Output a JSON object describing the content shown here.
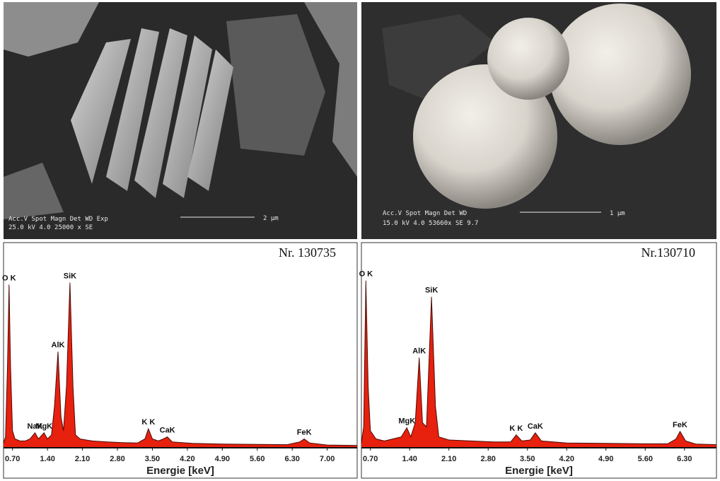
{
  "images": [
    {
      "header": "Acc.V  Spot Magn   Det  WD  Exp",
      "settings": "25.0 kV 4.0  25000 x  SE",
      "scale": "2 µm"
    },
    {
      "header": "Acc.V  Spot Magn   Det  WD",
      "settings": "15.0 kV 4.0  53660x  SE   9.7",
      "scale": "1 µm"
    }
  ],
  "chart_data": [
    {
      "type": "area",
      "title": "Nr. 130735",
      "x_label": "Energie [keV]",
      "color": "#e8200e",
      "x": [
        0.52,
        0.56,
        0.6,
        0.63,
        0.66,
        0.7,
        0.75,
        0.85,
        0.95,
        1.05,
        1.15,
        1.22,
        1.33,
        1.4,
        1.48,
        1.54,
        1.61,
        1.67,
        1.72,
        1.78,
        1.85,
        1.91,
        1.96,
        2.05,
        2.3,
        2.6,
        2.9,
        3.2,
        3.35,
        3.42,
        3.5,
        3.62,
        3.72,
        3.8,
        3.9,
        4.3,
        4.9,
        5.6,
        6.2,
        6.45,
        6.54,
        6.65,
        7.0,
        7.6
      ],
      "values": [
        2,
        5,
        40,
        80,
        40,
        8,
        4,
        3,
        3,
        4,
        7,
        4,
        7,
        4,
        6,
        20,
        47,
        15,
        8,
        30,
        81,
        30,
        6,
        4,
        3,
        2.5,
        2.2,
        2,
        4,
        9,
        4,
        3,
        4,
        5,
        2.5,
        1.8,
        1.5,
        1.3,
        1.2,
        2.5,
        4,
        2,
        1,
        0.8
      ],
      "xlim": [
        0.52,
        7.6
      ],
      "ylim": [
        0,
        100
      ],
      "xticks": [
        {
          "value": 0.7,
          "label": "0.70"
        },
        {
          "value": 1.4,
          "label": "1.40"
        },
        {
          "value": 2.1,
          "label": "2.10"
        },
        {
          "value": 2.8,
          "label": "2.80"
        },
        {
          "value": 3.5,
          "label": "3.50"
        },
        {
          "value": 4.2,
          "label": "4.20"
        },
        {
          "value": 4.9,
          "label": "4.90"
        },
        {
          "value": 5.6,
          "label": "5.60"
        },
        {
          "value": 6.3,
          "label": "6.30"
        },
        {
          "value": 7.0,
          "label": "7.00"
        }
      ],
      "annotations": [
        {
          "text": "O K",
          "x": 0.63
        },
        {
          "text": "NaK",
          "x": 1.15
        },
        {
          "text": "MgK",
          "x": 1.33
        },
        {
          "text": "AlK",
          "x": 1.61
        },
        {
          "text": "SiK",
          "x": 1.85
        },
        {
          "text": "K K",
          "x": 3.42
        },
        {
          "text": "CaK",
          "x": 3.8
        },
        {
          "text": "FeK",
          "x": 6.54
        }
      ]
    },
    {
      "type": "area",
      "title": "Nr.130710",
      "x_label": "Energie [keV]",
      "color": "#e8200e",
      "x": [
        0.54,
        0.58,
        0.62,
        0.66,
        0.7,
        0.8,
        0.95,
        1.1,
        1.25,
        1.35,
        1.42,
        1.5,
        1.57,
        1.63,
        1.7,
        1.79,
        1.86,
        1.92,
        2.1,
        2.5,
        2.9,
        3.2,
        3.3,
        3.4,
        3.55,
        3.64,
        3.75,
        4.2,
        4.9,
        5.6,
        6.0,
        6.15,
        6.22,
        6.32,
        6.5,
        6.87
      ],
      "values": [
        2,
        10,
        82,
        30,
        8,
        4,
        3,
        4,
        5,
        9.5,
        5,
        12,
        44,
        12,
        10,
        74,
        20,
        5,
        3.5,
        3,
        2.5,
        2.5,
        6,
        3,
        3.5,
        7,
        3,
        2,
        1.8,
        1.6,
        1.6,
        4,
        7.7,
        3,
        1.5,
        1.2
      ],
      "xlim": [
        0.54,
        6.87
      ],
      "ylim": [
        0,
        100
      ],
      "xticks": [
        {
          "value": 0.7,
          "label": "0.70"
        },
        {
          "value": 1.4,
          "label": "1.40"
        },
        {
          "value": 2.1,
          "label": "2.10"
        },
        {
          "value": 2.8,
          "label": "2.80"
        },
        {
          "value": 3.5,
          "label": "3.50"
        },
        {
          "value": 4.2,
          "label": "4.20"
        },
        {
          "value": 4.9,
          "label": "4.90"
        },
        {
          "value": 5.6,
          "label": "5.60"
        },
        {
          "value": 6.3,
          "label": "6.30"
        }
      ],
      "annotations": [
        {
          "text": "O K",
          "x": 0.62
        },
        {
          "text": "MgK",
          "x": 1.35
        },
        {
          "text": "AlK",
          "x": 1.57
        },
        {
          "text": "SiK",
          "x": 1.79
        },
        {
          "text": "K K",
          "x": 3.3
        },
        {
          "text": "CaK",
          "x": 3.64
        },
        {
          "text": "FeK",
          "x": 6.22
        }
      ]
    }
  ]
}
